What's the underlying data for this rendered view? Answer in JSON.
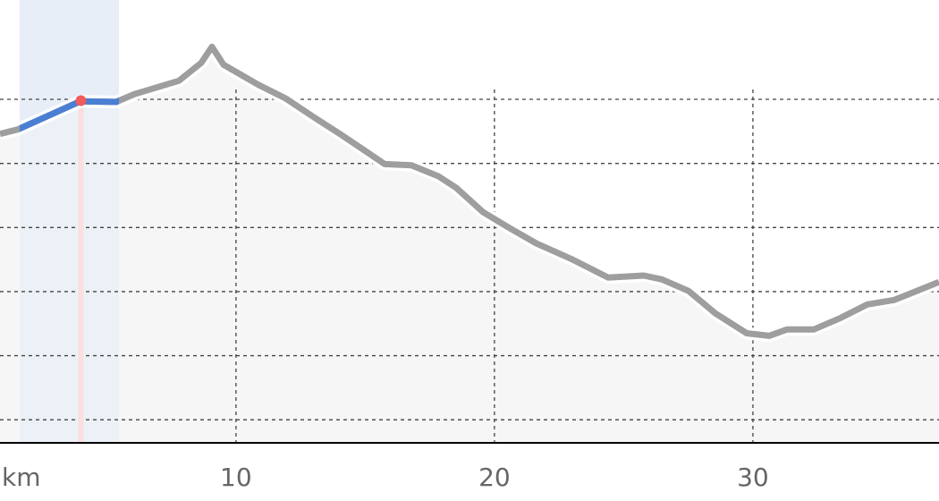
{
  "chart_data": {
    "type": "line",
    "x_unit_label": "km",
    "x": [
      0.87,
      1.56,
      3.98,
      5.37,
      6.06,
      7.79,
      8.66,
      9.07,
      9.52,
      10.9,
      11.94,
      12.98,
      14.02,
      15.06,
      15.75,
      16.79,
      17.83,
      18.52,
      19.56,
      20.59,
      21.63,
      23.02,
      24.4,
      25.78,
      26.48,
      27.51,
      28.55,
      29.76,
      30.63,
      31.32,
      32.36,
      33.4,
      34.43,
      35.47,
      37.2
    ],
    "series": [
      {
        "color": "#9e9e9e",
        "values": [
          4.46,
          4.53,
          4.97,
          4.96,
          5.08,
          5.29,
          5.57,
          5.82,
          5.54,
          5.22,
          5.01,
          4.73,
          4.46,
          4.18,
          3.99,
          3.97,
          3.8,
          3.62,
          3.24,
          2.99,
          2.75,
          2.5,
          2.22,
          2.25,
          2.19,
          2.01,
          1.66,
          1.35,
          1.31,
          1.41,
          1.41,
          1.59,
          1.8,
          1.87,
          2.15
        ]
      }
    ],
    "highlight": {
      "start": 1.63,
      "end": 5.47,
      "color": "#4a7fd4",
      "band_color": "#e8eef8"
    },
    "marker": {
      "x": 4.0,
      "y": 4.98,
      "color": "#f25c5c"
    },
    "area_color": "#f4f4f4",
    "xlim": [
      0.87,
      37.2
    ],
    "xticks": [
      10,
      20,
      30
    ],
    "ylim": [
      -0.36,
      6.55
    ],
    "y_gridlines": [
      0,
      1,
      2,
      3,
      4,
      5
    ],
    "grid": true
  }
}
